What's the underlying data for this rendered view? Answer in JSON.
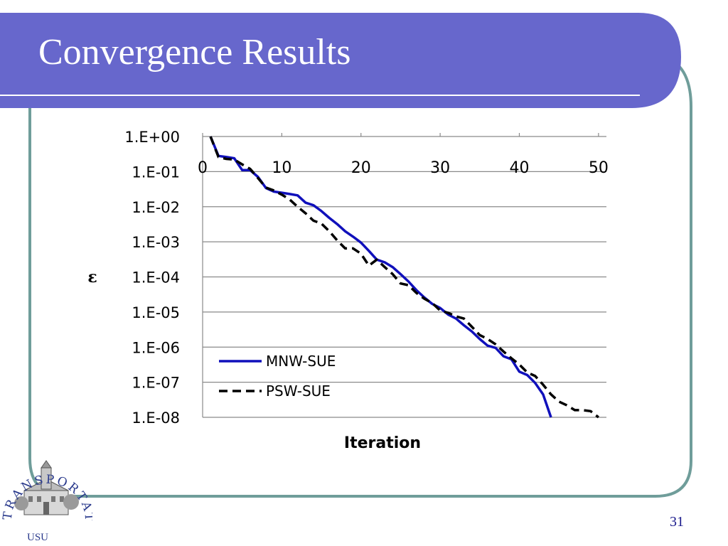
{
  "slide": {
    "title": "Convergence Results",
    "number": "31",
    "logo_arc_text": "TRANSPORTATION",
    "logo_label": "USU"
  },
  "colors": {
    "header_band": "#6767cc",
    "frame_border": "#6f9d9a",
    "series_mnw": "#1010bb",
    "series_psw": "#000000"
  },
  "chart_data": {
    "type": "line",
    "xlabel": "Iteration",
    "ylabel": "ε",
    "xlim": [
      0,
      51
    ],
    "xticks": [
      0,
      10,
      20,
      30,
      40,
      50
    ],
    "y_scale": "log",
    "y_exponent_range": [
      -8,
      0
    ],
    "yticks": [
      "1.E+00",
      "1.E-01",
      "1.E-02",
      "1.E-03",
      "1.E-04",
      "1.E-05",
      "1.E-06",
      "1.E-07",
      "1.E-08"
    ],
    "grid": "horizontal",
    "legend_position": "bottom-left",
    "series": [
      {
        "name": "MNW-SUE",
        "style": "solid",
        "points": [
          [
            1,
            1.0
          ],
          [
            2,
            0.28
          ],
          [
            3,
            0.26
          ],
          [
            4,
            0.24
          ],
          [
            5,
            0.11
          ],
          [
            6,
            0.11
          ],
          [
            7,
            0.07
          ],
          [
            8,
            0.034
          ],
          [
            9,
            0.027
          ],
          [
            10,
            0.025
          ],
          [
            11,
            0.023
          ],
          [
            12,
            0.021
          ],
          [
            13,
            0.013
          ],
          [
            14,
            0.011
          ],
          [
            15,
            0.0075
          ],
          [
            16,
            0.0048
          ],
          [
            17,
            0.0032
          ],
          [
            18,
            0.002
          ],
          [
            19,
            0.0014
          ],
          [
            20,
            0.00095
          ],
          [
            21,
            0.00055
          ],
          [
            22,
            0.00031
          ],
          [
            23,
            0.00026
          ],
          [
            24,
            0.00019
          ],
          [
            25,
            0.00012
          ],
          [
            26,
            7.4e-05
          ],
          [
            27,
            4.2e-05
          ],
          [
            28,
            2.6e-05
          ],
          [
            29,
            1.7e-05
          ],
          [
            30,
            1.3e-05
          ],
          [
            31,
            8.5e-06
          ],
          [
            32,
            6.5e-06
          ],
          [
            33,
            4.2e-06
          ],
          [
            34,
            2.8e-06
          ],
          [
            35,
            1.7e-06
          ],
          [
            36,
            1.1e-06
          ],
          [
            37,
            9.5e-07
          ],
          [
            38,
            5.5e-07
          ],
          [
            39,
            4.5e-07
          ],
          [
            40,
            2e-07
          ],
          [
            41,
            1.6e-07
          ],
          [
            42,
            9.5e-08
          ],
          [
            43,
            4.5e-08
          ],
          [
            44,
            1e-08
          ]
        ]
      },
      {
        "name": "PSW-SUE",
        "style": "dashed",
        "points": [
          [
            1,
            1.0
          ],
          [
            2,
            0.26
          ],
          [
            3,
            0.23
          ],
          [
            4,
            0.22
          ],
          [
            5,
            0.16
          ],
          [
            6,
            0.12
          ],
          [
            7,
            0.065
          ],
          [
            8,
            0.035
          ],
          [
            9,
            0.029
          ],
          [
            10,
            0.022
          ],
          [
            11,
            0.016
          ],
          [
            12,
            0.01
          ],
          [
            13,
            0.0065
          ],
          [
            14,
            0.004
          ],
          [
            15,
            0.0033
          ],
          [
            16,
            0.002
          ],
          [
            17,
            0.0011
          ],
          [
            18,
            0.00065
          ],
          [
            19,
            0.00065
          ],
          [
            20,
            0.00046
          ],
          [
            21,
            0.00021
          ],
          [
            22,
            0.00031
          ],
          [
            23,
            0.00019
          ],
          [
            24,
            0.00012
          ],
          [
            25,
            6.5e-05
          ],
          [
            26,
            5.8e-05
          ],
          [
            27,
            3.5e-05
          ],
          [
            28,
            2.4e-05
          ],
          [
            29,
            1.8e-05
          ],
          [
            30,
            1.1e-05
          ],
          [
            31,
            9.5e-06
          ],
          [
            32,
            7.5e-06
          ],
          [
            33,
            6.5e-06
          ],
          [
            34,
            3.8e-06
          ],
          [
            35,
            2.2e-06
          ],
          [
            36,
            1.7e-06
          ],
          [
            37,
            1.2e-06
          ],
          [
            38,
            7.5e-07
          ],
          [
            39,
            4.8e-07
          ],
          [
            40,
            3.2e-07
          ],
          [
            41,
            1.9e-07
          ],
          [
            42,
            1.5e-07
          ],
          [
            43,
            8.5e-08
          ],
          [
            44,
            4.5e-08
          ],
          [
            45,
            2.8e-08
          ],
          [
            46,
            2.2e-08
          ],
          [
            47,
            1.6e-08
          ],
          [
            48,
            1.6e-08
          ],
          [
            49,
            1.5e-08
          ],
          [
            50,
            1e-08
          ]
        ]
      }
    ]
  }
}
